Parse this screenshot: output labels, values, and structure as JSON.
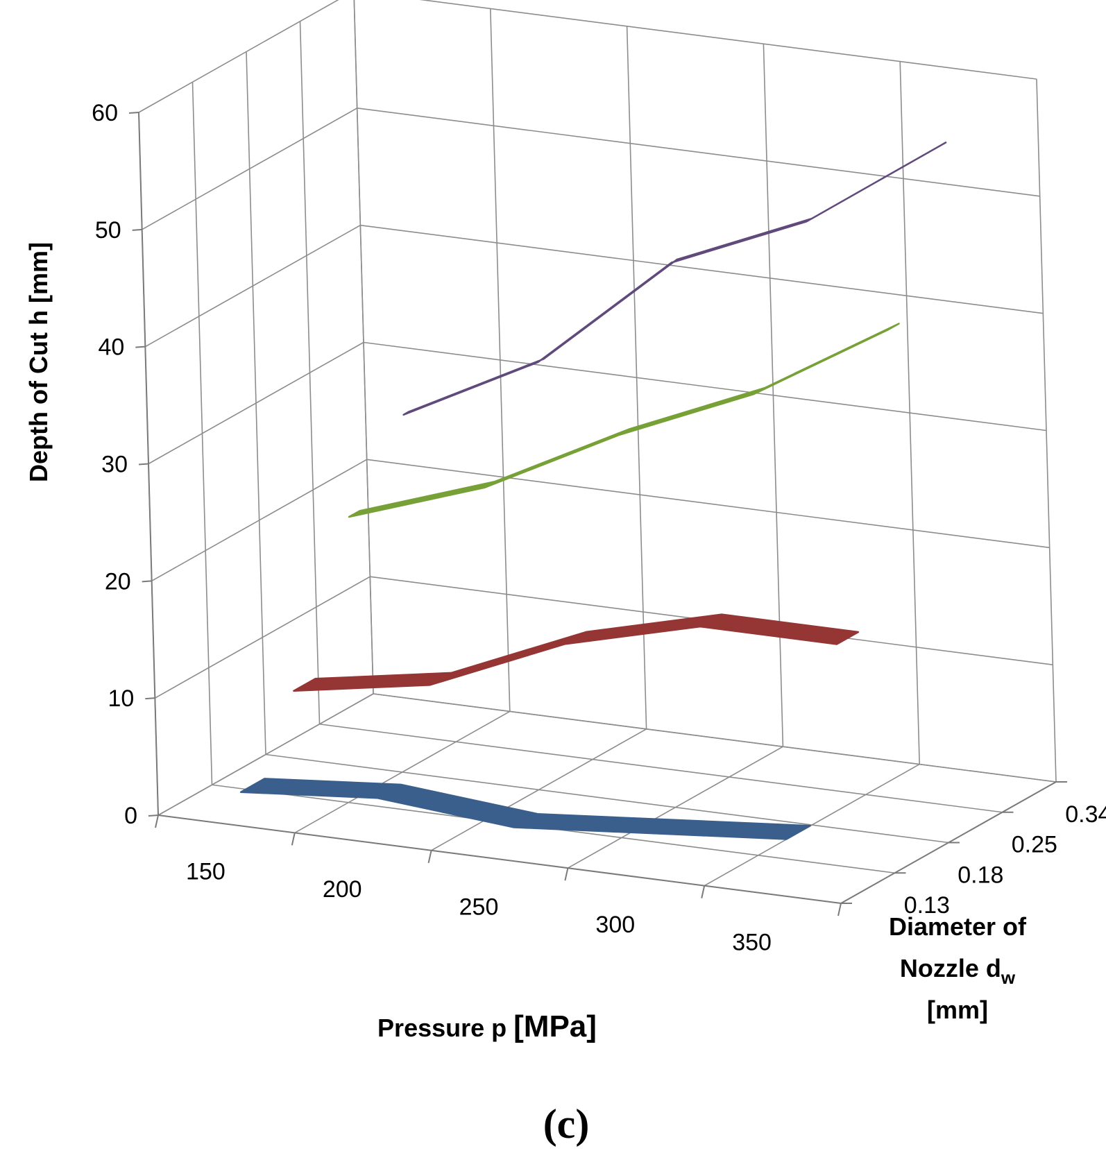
{
  "chart_data": {
    "type": "line",
    "subtype": "3d-ribbon",
    "panel_label": "(c)",
    "x": {
      "title": "Pressure p [MPa]",
      "title_text": "Pressure p ",
      "title_unit": "[MPa]",
      "categories": [
        "150",
        "200",
        "250",
        "300",
        "350"
      ]
    },
    "y": {
      "title": "Depth of Cut h [mm]",
      "ticks": [
        "0",
        "10",
        "20",
        "30",
        "40",
        "50",
        "60"
      ],
      "ylim": [
        0,
        60
      ]
    },
    "z": {
      "title_line1": "Diameter of",
      "title_line2_prefix": "Nozzle d",
      "title_line2_sub": "w",
      "title_line3": "[mm]",
      "categories": [
        "0.13",
        "0.18",
        "0.25",
        "0.34"
      ]
    },
    "series": [
      {
        "name": "0.13",
        "color": "#3a5f8c",
        "values": [
          2,
          3,
          2,
          3,
          4
        ]
      },
      {
        "name": "0.18",
        "color": "#953534",
        "values": [
          8,
          10,
          15,
          18,
          18
        ]
      },
      {
        "name": "0.25",
        "color": "#77a037",
        "values": [
          20,
          24,
          30,
          35,
          42
        ]
      },
      {
        "name": "0.34",
        "color": "#604a7b",
        "values": [
          26,
          32,
          42,
          47,
          55
        ]
      }
    ]
  }
}
